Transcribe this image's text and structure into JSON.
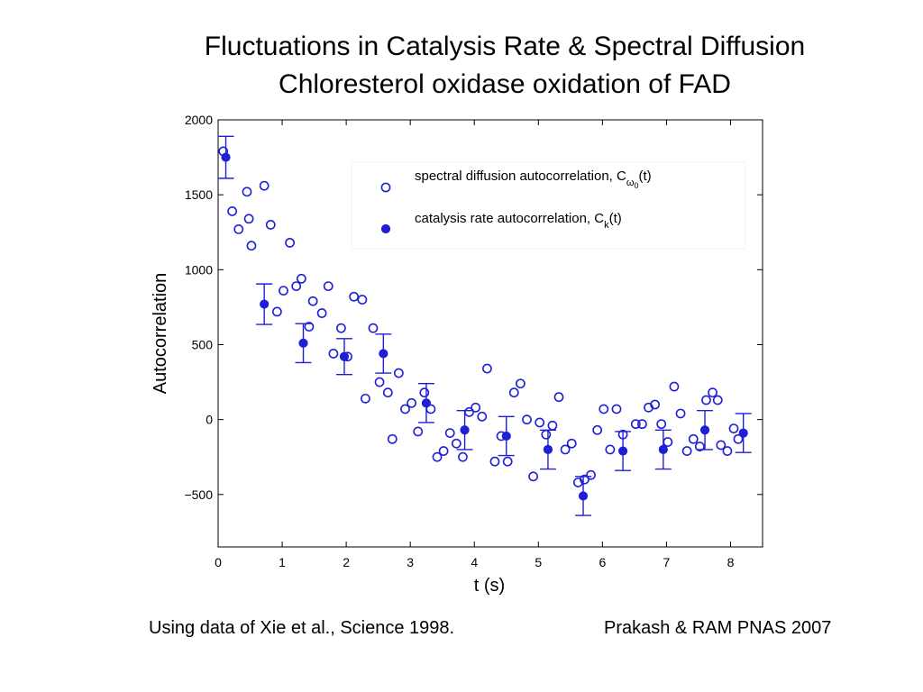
{
  "slide": {
    "title_line1": "Fluctuations in Catalysis Rate & Spectral Diffusion",
    "title_line2": "Chloresterol oxidase oxidation of FAD",
    "footer_left": "Using data of Xie et al., Science 1998.",
    "footer_right": "Prakash & RAM PNAS 2007"
  },
  "chart_data": {
    "type": "scatter",
    "xlabel": "t (s)",
    "ylabel": "Autocorrelation",
    "xlim": [
      0,
      8.5
    ],
    "ylim": [
      -850,
      2000
    ],
    "xticks": [
      0,
      1,
      2,
      3,
      4,
      5,
      6,
      7,
      8
    ],
    "yticks": [
      -500,
      0,
      500,
      1000,
      1500,
      2000
    ],
    "grid": false,
    "legend_position": "top-right",
    "series": [
      {
        "name": "spectral diffusion autocorrelation, C",
        "name_sub": "ω",
        "name_subsub": "0",
        "name_tail": "(t)",
        "marker": "open-circle",
        "color": "#1f1fd6",
        "points": [
          [
            0.08,
            1790
          ],
          [
            0.22,
            1390
          ],
          [
            0.32,
            1270
          ],
          [
            0.45,
            1520
          ],
          [
            0.48,
            1340
          ],
          [
            0.52,
            1160
          ],
          [
            0.72,
            1560
          ],
          [
            0.82,
            1300
          ],
          [
            0.92,
            720
          ],
          [
            1.02,
            860
          ],
          [
            1.12,
            1180
          ],
          [
            1.22,
            890
          ],
          [
            1.3,
            940
          ],
          [
            1.42,
            620
          ],
          [
            1.48,
            790
          ],
          [
            1.62,
            710
          ],
          [
            1.72,
            890
          ],
          [
            1.8,
            440
          ],
          [
            1.92,
            610
          ],
          [
            2.02,
            420
          ],
          [
            2.12,
            820
          ],
          [
            2.25,
            800
          ],
          [
            2.3,
            140
          ],
          [
            2.42,
            610
          ],
          [
            2.52,
            250
          ],
          [
            2.65,
            180
          ],
          [
            2.72,
            -130
          ],
          [
            2.82,
            310
          ],
          [
            2.92,
            70
          ],
          [
            3.02,
            110
          ],
          [
            3.12,
            -80
          ],
          [
            3.22,
            180
          ],
          [
            3.32,
            70
          ],
          [
            3.42,
            -250
          ],
          [
            3.52,
            -210
          ],
          [
            3.62,
            -90
          ],
          [
            3.72,
            -160
          ],
          [
            3.82,
            -250
          ],
          [
            3.92,
            50
          ],
          [
            4.02,
            80
          ],
          [
            4.12,
            20
          ],
          [
            4.2,
            340
          ],
          [
            4.32,
            -280
          ],
          [
            4.42,
            -110
          ],
          [
            4.52,
            -280
          ],
          [
            4.62,
            180
          ],
          [
            4.72,
            240
          ],
          [
            4.82,
            0
          ],
          [
            4.92,
            -380
          ],
          [
            5.02,
            -20
          ],
          [
            5.12,
            -100
          ],
          [
            5.22,
            -40
          ],
          [
            5.32,
            150
          ],
          [
            5.42,
            -200
          ],
          [
            5.52,
            -160
          ],
          [
            5.62,
            -420
          ],
          [
            5.72,
            -400
          ],
          [
            5.82,
            -370
          ],
          [
            5.92,
            -70
          ],
          [
            6.02,
            70
          ],
          [
            6.12,
            -200
          ],
          [
            6.22,
            70
          ],
          [
            6.32,
            -100
          ],
          [
            6.52,
            -30
          ],
          [
            6.62,
            -30
          ],
          [
            6.72,
            80
          ],
          [
            6.82,
            100
          ],
          [
            6.92,
            -30
          ],
          [
            7.02,
            -150
          ],
          [
            7.12,
            220
          ],
          [
            7.22,
            40
          ],
          [
            7.32,
            -210
          ],
          [
            7.42,
            -130
          ],
          [
            7.52,
            -180
          ],
          [
            7.62,
            130
          ],
          [
            7.72,
            180
          ],
          [
            7.8,
            130
          ],
          [
            7.85,
            -170
          ],
          [
            7.95,
            -210
          ],
          [
            8.05,
            -60
          ],
          [
            8.12,
            -130
          ]
        ]
      },
      {
        "name": "catalysis rate autocorrelation, C",
        "name_sub": "k",
        "name_subsub": "",
        "name_tail": "(t)",
        "marker": "filled-circle",
        "color": "#1f1fd6",
        "points": [
          [
            0.12,
            1750
          ],
          [
            0.72,
            770
          ],
          [
            1.33,
            510
          ],
          [
            1.97,
            420
          ],
          [
            2.58,
            440
          ],
          [
            3.25,
            110
          ],
          [
            3.85,
            -70
          ],
          [
            4.5,
            -110
          ],
          [
            5.15,
            -200
          ],
          [
            5.7,
            -510
          ],
          [
            6.32,
            -210
          ],
          [
            6.95,
            -200
          ],
          [
            7.6,
            -70
          ],
          [
            8.2,
            -90
          ]
        ],
        "errors": [
          140,
          135,
          130,
          120,
          130,
          130,
          130,
          130,
          130,
          130,
          130,
          130,
          130,
          130
        ]
      }
    ]
  }
}
